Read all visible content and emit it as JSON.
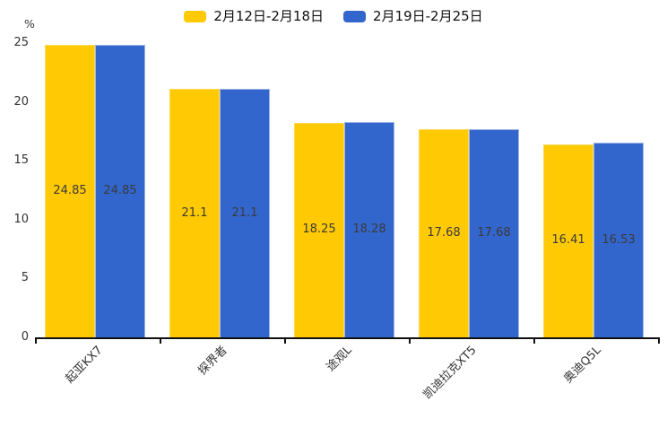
{
  "chart_data": {
    "type": "bar",
    "title": "",
    "ylabel": "%",
    "categories": [
      "起亚KX7",
      "探界者",
      "途观L",
      "凯迪拉克XT5",
      "奥迪Q5L"
    ],
    "series": [
      {
        "name": "2月12日-2月18日",
        "color": "#FFC904",
        "border_color": "#FFDA55",
        "values": [
          24.85,
          21.1,
          18.25,
          17.68,
          16.41
        ]
      },
      {
        "name": "2月19日-2月25日",
        "color": "#3366CC",
        "border_color": "#9FB4E4",
        "values": [
          24.85,
          21.1,
          18.28,
          17.68,
          16.53
        ]
      }
    ],
    "ylim": [
      0,
      25
    ],
    "yticks": [
      0,
      5,
      10,
      15,
      20,
      25
    ],
    "legend_position": "top-center",
    "grid": false,
    "value_labels": "inside-center",
    "xtick_rotation": 45,
    "axis_color": "#111111",
    "text_color": "#333333"
  }
}
